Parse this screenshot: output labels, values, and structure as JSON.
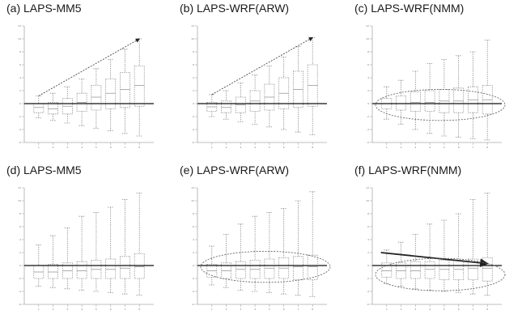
{
  "chart_data": [
    {
      "type": "box",
      "title": "(a) LAPS-MM5",
      "xlabel": "",
      "ylabel": "",
      "ylim": [
        -6,
        12
      ],
      "baseline": 0,
      "annotation": "dashed-arrow-up",
      "categories": [
        "1",
        "2",
        "3",
        "4",
        "5",
        "6",
        "7",
        "8"
      ],
      "boxes": [
        {
          "min": -2.2,
          "q1": -1.4,
          "median": -0.6,
          "q3": 0.0,
          "max": 1.2
        },
        {
          "min": -2.6,
          "q1": -1.6,
          "median": -0.8,
          "q3": 0.2,
          "max": 1.6
        },
        {
          "min": -3.0,
          "q1": -1.6,
          "median": -0.4,
          "q3": 0.8,
          "max": 2.6
        },
        {
          "min": -3.4,
          "q1": -1.2,
          "median": 0.2,
          "q3": 1.6,
          "max": 3.8
        },
        {
          "min": -3.8,
          "q1": -1.0,
          "median": 1.0,
          "q3": 2.8,
          "max": 5.4
        },
        {
          "min": -4.2,
          "q1": -0.8,
          "median": 1.6,
          "q3": 3.8,
          "max": 6.8
        },
        {
          "min": -4.6,
          "q1": -0.6,
          "median": 2.2,
          "q3": 4.8,
          "max": 8.4
        },
        {
          "min": -5.0,
          "q1": -0.4,
          "median": 2.8,
          "q3": 5.8,
          "max": 10.0
        }
      ]
    },
    {
      "type": "box",
      "title": "(b) LAPS-WRF(ARW)",
      "xlabel": "",
      "ylabel": "",
      "ylim": [
        -6,
        12
      ],
      "baseline": 0,
      "annotation": "dashed-arrow-up",
      "categories": [
        "1",
        "2",
        "3",
        "4",
        "5",
        "6",
        "7",
        "8"
      ],
      "boxes": [
        {
          "min": -2.0,
          "q1": -1.2,
          "median": -0.5,
          "q3": 0.2,
          "max": 1.4
        },
        {
          "min": -2.4,
          "q1": -1.4,
          "median": -0.6,
          "q3": 0.4,
          "max": 2.0
        },
        {
          "min": -2.8,
          "q1": -1.4,
          "median": -0.2,
          "q3": 1.0,
          "max": 3.2
        },
        {
          "min": -3.2,
          "q1": -1.2,
          "median": 0.4,
          "q3": 2.0,
          "max": 4.4
        },
        {
          "min": -3.6,
          "q1": -1.0,
          "median": 1.0,
          "q3": 3.0,
          "max": 5.8
        },
        {
          "min": -4.0,
          "q1": -0.8,
          "median": 1.6,
          "q3": 4.0,
          "max": 7.2
        },
        {
          "min": -4.4,
          "q1": -0.6,
          "median": 2.2,
          "q3": 5.0,
          "max": 8.8
        },
        {
          "min": -4.8,
          "q1": -0.4,
          "median": 2.8,
          "q3": 6.0,
          "max": 10.2
        }
      ]
    },
    {
      "type": "box",
      "title": "(c) LAPS-WRF(NMM)",
      "xlabel": "",
      "ylabel": "",
      "ylim": [
        -6,
        12
      ],
      "baseline": 0,
      "annotation": "dashed-ellipse",
      "categories": [
        "1",
        "2",
        "3",
        "4",
        "5",
        "6",
        "7",
        "8"
      ],
      "boxes": [
        {
          "min": -2.4,
          "q1": -0.8,
          "median": 0.0,
          "q3": 0.8,
          "max": 2.6
        },
        {
          "min": -3.2,
          "q1": -1.0,
          "median": 0.0,
          "q3": 1.2,
          "max": 3.6
        },
        {
          "min": -4.0,
          "q1": -1.2,
          "median": 0.2,
          "q3": 1.8,
          "max": 5.0
        },
        {
          "min": -4.6,
          "q1": -1.2,
          "median": 0.2,
          "q3": 2.0,
          "max": 6.2
        },
        {
          "min": -5.0,
          "q1": -1.4,
          "median": 0.4,
          "q3": 2.2,
          "max": 6.8
        },
        {
          "min": -5.2,
          "q1": -1.4,
          "median": 0.4,
          "q3": 2.4,
          "max": 7.4
        },
        {
          "min": -5.4,
          "q1": -1.4,
          "median": 0.6,
          "q3": 2.6,
          "max": 8.0
        },
        {
          "min": -5.6,
          "q1": -1.6,
          "median": 0.6,
          "q3": 2.8,
          "max": 9.8
        }
      ]
    },
    {
      "type": "box",
      "title": "(d) LAPS-MM5",
      "xlabel": "",
      "ylabel": "",
      "ylim": [
        -6,
        12
      ],
      "baseline": 0,
      "annotation": "none",
      "categories": [
        "1",
        "2",
        "3",
        "4",
        "5",
        "6",
        "7",
        "8"
      ],
      "boxes": [
        {
          "min": -3.2,
          "q1": -2.0,
          "median": -1.0,
          "q3": 0.0,
          "max": 3.2
        },
        {
          "min": -3.4,
          "q1": -2.0,
          "median": -1.0,
          "q3": 0.2,
          "max": 4.6
        },
        {
          "min": -3.6,
          "q1": -2.0,
          "median": -0.8,
          "q3": 0.4,
          "max": 5.8
        },
        {
          "min": -3.8,
          "q1": -2.0,
          "median": -0.8,
          "q3": 0.6,
          "max": 7.6
        },
        {
          "min": -4.0,
          "q1": -2.0,
          "median": -0.6,
          "q3": 0.8,
          "max": 8.2
        },
        {
          "min": -4.2,
          "q1": -2.0,
          "median": -0.6,
          "q3": 1.0,
          "max": 9.0
        },
        {
          "min": -4.4,
          "q1": -2.0,
          "median": -0.4,
          "q3": 1.4,
          "max": 10.2
        },
        {
          "min": -4.6,
          "q1": -2.0,
          "median": -0.2,
          "q3": 1.8,
          "max": 11.2
        }
      ]
    },
    {
      "type": "box",
      "title": "(e) LAPS-WRF(ARW)",
      "xlabel": "",
      "ylabel": "",
      "ylim": [
        -6,
        12
      ],
      "baseline": 0,
      "annotation": "dashed-ellipse",
      "categories": [
        "1",
        "2",
        "3",
        "4",
        "5",
        "6",
        "7",
        "8"
      ],
      "boxes": [
        {
          "min": -3.0,
          "q1": -1.8,
          "median": -0.8,
          "q3": 0.2,
          "max": 3.0
        },
        {
          "min": -3.4,
          "q1": -2.0,
          "median": -0.8,
          "q3": 0.4,
          "max": 4.8
        },
        {
          "min": -3.8,
          "q1": -2.0,
          "median": -0.6,
          "q3": 0.6,
          "max": 6.4
        },
        {
          "min": -4.0,
          "q1": -2.0,
          "median": -0.6,
          "q3": 0.8,
          "max": 7.6
        },
        {
          "min": -4.2,
          "q1": -2.0,
          "median": -0.4,
          "q3": 1.0,
          "max": 8.2
        },
        {
          "min": -4.4,
          "q1": -2.0,
          "median": -0.4,
          "q3": 1.2,
          "max": 8.8
        },
        {
          "min": -4.6,
          "q1": -2.2,
          "median": -0.2,
          "q3": 1.4,
          "max": 10.0
        },
        {
          "min": -4.8,
          "q1": -2.2,
          "median": -0.2,
          "q3": 1.6,
          "max": 11.4
        }
      ]
    },
    {
      "type": "box",
      "title": "(f) LAPS-WRF(NMM)",
      "xlabel": "",
      "ylabel": "",
      "ylim": [
        -6,
        12
      ],
      "baseline": 0,
      "annotation": "solid-arrow-down",
      "categories": [
        "1",
        "2",
        "3",
        "4",
        "5",
        "6",
        "7",
        "8"
      ],
      "boxes": [
        {
          "min": -2.8,
          "q1": -1.8,
          "median": -0.8,
          "q3": 0.4,
          "max": 2.4
        },
        {
          "min": -3.2,
          "q1": -2.0,
          "median": -0.8,
          "q3": 0.4,
          "max": 3.6
        },
        {
          "min": -3.6,
          "q1": -2.0,
          "median": -0.8,
          "q3": 0.6,
          "max": 4.8
        },
        {
          "min": -3.8,
          "q1": -2.0,
          "median": -0.6,
          "q3": 0.6,
          "max": 6.4
        },
        {
          "min": -4.0,
          "q1": -2.2,
          "median": -0.6,
          "q3": 0.8,
          "max": 7.0
        },
        {
          "min": -4.2,
          "q1": -2.2,
          "median": -0.6,
          "q3": 0.8,
          "max": 8.0
        },
        {
          "min": -4.4,
          "q1": -2.2,
          "median": -0.4,
          "q3": 1.0,
          "max": 10.2
        },
        {
          "min": -4.6,
          "q1": -2.4,
          "median": -0.4,
          "q3": 1.2,
          "max": 11.2
        }
      ]
    }
  ]
}
